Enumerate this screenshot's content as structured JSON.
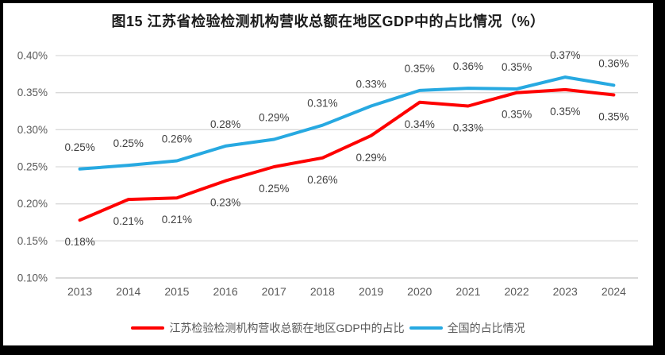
{
  "title": "图15  江苏省检验检测机构营收总额在地区GDP中的占比情况（%）",
  "colors": {
    "jiangsu_line": "#fe0000",
    "national_line": "#27a9e1",
    "gridline": "#d9d9d9",
    "axis_text": "#595959",
    "data_label_text": "#404040",
    "frame_background": "#ffffff",
    "outer_border": "#000000"
  },
  "legend": {
    "items": [
      {
        "name": "jiangsu",
        "label": "江苏检验检测机构营收总额在地区GDP中的占比",
        "color": "#fe0000"
      },
      {
        "name": "national",
        "label": "全国的占比情况",
        "color": "#27a9e1"
      }
    ]
  },
  "chart_data": {
    "type": "line",
    "title": "图15  江苏省检验检测机构营收总额在地区GDP中的占比情况（%）",
    "categories": [
      "2013",
      "2014",
      "2015",
      "2016",
      "2017",
      "2018",
      "2019",
      "2020",
      "2021",
      "2022",
      "2023",
      "2024"
    ],
    "series": [
      {
        "name": "江苏检验检测机构营收总额在地区GDP中的占比",
        "color": "#fe0000",
        "values": [
          0.178,
          0.206,
          0.208,
          0.231,
          0.25,
          0.262,
          0.292,
          0.337,
          0.332,
          0.35,
          0.354,
          0.347
        ],
        "labels": [
          "0.18%",
          "0.21%",
          "0.21%",
          "0.23%",
          "0.25%",
          "0.26%",
          "0.29%",
          "0.34%",
          "0.33%",
          "0.35%",
          "0.35%",
          "0.35%"
        ],
        "label_position": "below"
      },
      {
        "name": "全国的占比情况",
        "color": "#27a9e1",
        "values": [
          0.247,
          0.252,
          0.258,
          0.278,
          0.287,
          0.306,
          0.332,
          0.353,
          0.356,
          0.355,
          0.371,
          0.36
        ],
        "labels": [
          "0.25%",
          "0.25%",
          "0.26%",
          "0.28%",
          "0.29%",
          "0.31%",
          "0.33%",
          "0.35%",
          "0.36%",
          "0.35%",
          "0.37%",
          "0.36%"
        ],
        "label_position": "above"
      }
    ],
    "xlabel": "",
    "ylabel": "",
    "ylim": [
      0.1,
      0.4
    ],
    "y_tick_step": 0.05,
    "y_tick_format": "0.00%",
    "grid": true,
    "legend_position": "bottom"
  }
}
